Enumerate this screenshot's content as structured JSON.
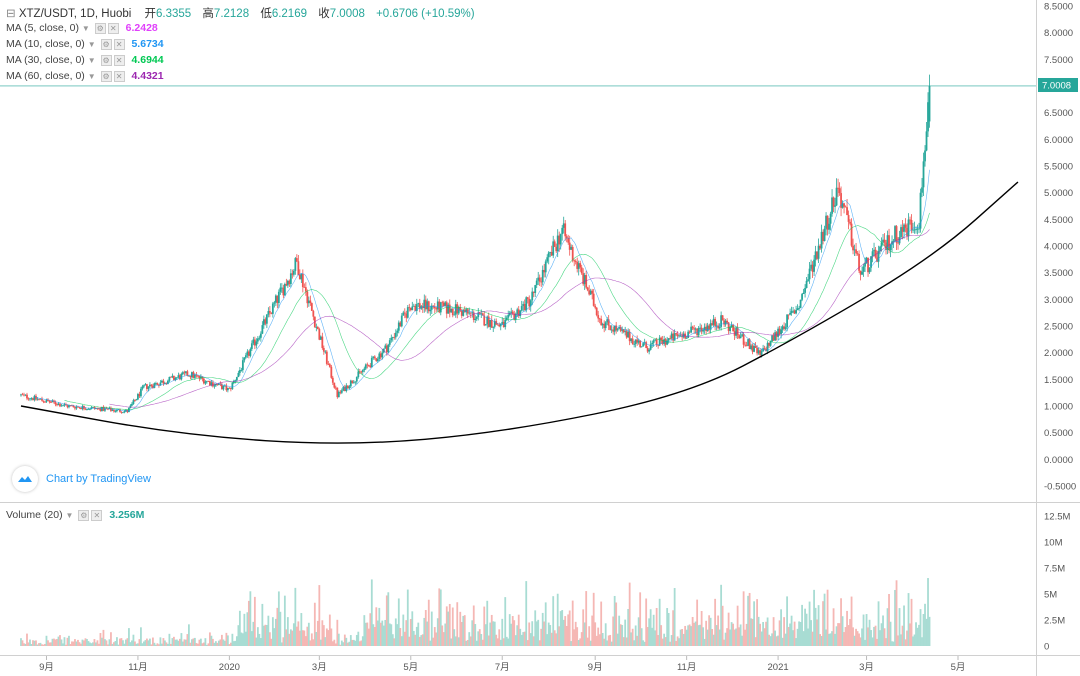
{
  "header": {
    "symbol": "XTZ/USDT, 1D, Huobi",
    "open_label": "开",
    "open": "6.3355",
    "high_label": "高",
    "high": "7.2128",
    "low_label": "低",
    "low": "6.2169",
    "close_label": "收",
    "close": "7.0008",
    "change": "+0.6706 (+10.59%)"
  },
  "indicators": [
    {
      "label": "MA (5, close, 0)",
      "value": "6.2428",
      "color": "#e040fb"
    },
    {
      "label": "MA (10, close, 0)",
      "value": "5.6734",
      "color": "#2196f3"
    },
    {
      "label": "MA (30, close, 0)",
      "value": "4.6944",
      "color": "#00c853"
    },
    {
      "label": "MA (60, close, 0)",
      "value": "4.4321",
      "color": "#9c27b0"
    }
  ],
  "volume_indicator": {
    "label": "Volume (20)",
    "value": "3.256M",
    "color": "#26a69a"
  },
  "watermark": "Chart by TradingView",
  "price_tag": "7.0008",
  "colors": {
    "up": "#26a69a",
    "down": "#ef5350",
    "up_vol": "#a8dcd3",
    "down_vol": "#f5b7b4",
    "curve": "#000000"
  },
  "chart_data": {
    "type": "candlestick",
    "symbol": "XTZ/USDT",
    "x_ticks": [
      "9月",
      "11月",
      "2020",
      "3月",
      "5月",
      "7月",
      "9月",
      "11月",
      "2021",
      "3月",
      "5月"
    ],
    "price_axis_ticks": [
      "8.5000",
      "8.0000",
      "7.5000",
      "7.0000",
      "6.5000",
      "6.0000",
      "5.5000",
      "5.0000",
      "4.5000",
      "4.0000",
      "3.5000",
      "3.0000",
      "2.5000",
      "2.0000",
      "1.5000",
      "1.0000",
      "0.5000",
      "0.0000",
      "-0.5000"
    ],
    "volume_axis_ticks": [
      "12.5M",
      "10M",
      "7.5M",
      "5M",
      "2.5M",
      "0"
    ],
    "price_ylim": [
      -0.6,
      8.55
    ],
    "volume_ylim": [
      0,
      12.5
    ],
    "last_price": 7.0008,
    "approx_close_path": [
      {
        "date": "2019-08-15",
        "price": 1.2
      },
      {
        "date": "2019-09-15",
        "price": 1.0
      },
      {
        "date": "2019-10-25",
        "price": 0.9
      },
      {
        "date": "2019-11-05",
        "price": 1.35
      },
      {
        "date": "2019-12-05",
        "price": 1.6
      },
      {
        "date": "2020-01-01",
        "price": 1.3
      },
      {
        "date": "2020-02-15",
        "price": 3.7
      },
      {
        "date": "2020-03-13",
        "price": 1.2
      },
      {
        "date": "2020-04-15",
        "price": 2.1
      },
      {
        "date": "2020-05-01",
        "price": 2.9
      },
      {
        "date": "2020-06-01",
        "price": 2.8
      },
      {
        "date": "2020-07-01",
        "price": 2.5
      },
      {
        "date": "2020-07-20",
        "price": 3.0
      },
      {
        "date": "2020-08-10",
        "price": 4.3
      },
      {
        "date": "2020-09-05",
        "price": 2.6
      },
      {
        "date": "2020-10-05",
        "price": 2.1
      },
      {
        "date": "2020-11-25",
        "price": 2.6
      },
      {
        "date": "2020-12-20",
        "price": 1.95
      },
      {
        "date": "2021-01-15",
        "price": 2.9
      },
      {
        "date": "2021-02-10",
        "price": 5.1
      },
      {
        "date": "2021-02-25",
        "price": 3.5
      },
      {
        "date": "2021-03-20",
        "price": 4.2
      },
      {
        "date": "2021-04-05",
        "price": 4.5
      },
      {
        "date": "2021-04-12",
        "price": 7.0008
      }
    ]
  }
}
